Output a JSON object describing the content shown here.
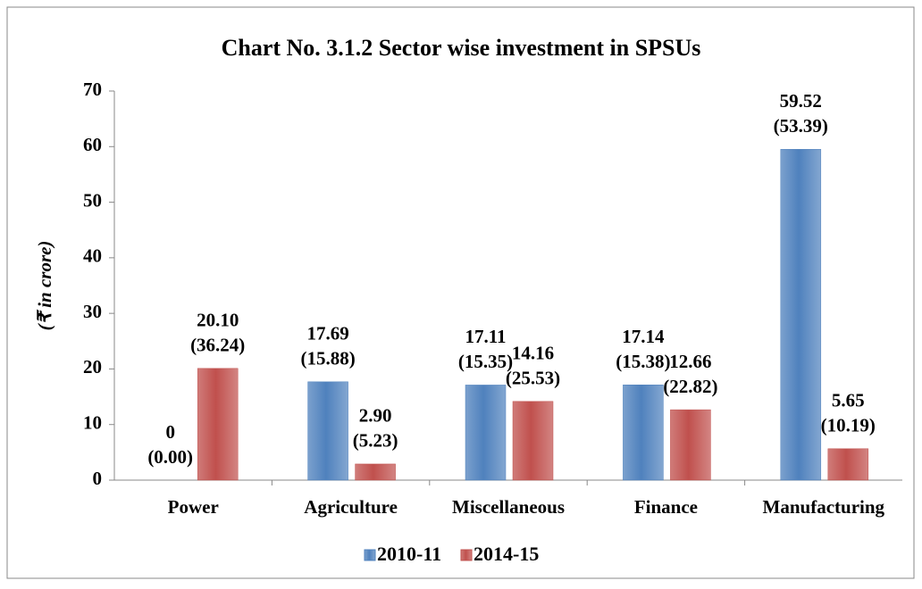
{
  "chart_data": {
    "type": "bar",
    "title": "Chart No. 3.1.2  Sector wise investment in SPSUs",
    "y_label": "(₹ in crore)",
    "categories": [
      "Power",
      "Agriculture",
      "Miscellaneous",
      "Finance",
      "Manufacturing"
    ],
    "series": [
      {
        "name": "2010-11",
        "color": "#4f81bd",
        "values": [
          0,
          17.69,
          17.11,
          17.14,
          59.52
        ],
        "value_labels": [
          "0",
          "17.69",
          "17.11",
          "17.14",
          "59.52"
        ],
        "share_labels": [
          "(0.00)",
          "(15.88)",
          "(15.35)",
          "(15.38)",
          "(53.39)"
        ]
      },
      {
        "name": "2014-15",
        "color": "#c0504d",
        "values": [
          20.1,
          2.9,
          14.16,
          12.66,
          5.65
        ],
        "value_labels": [
          "20.10",
          "2.90",
          "14.16",
          "12.66",
          "5.65"
        ],
        "share_labels": [
          "(36.24)",
          "(5.23)",
          "(25.53)",
          "(22.82)",
          "(10.19)"
        ]
      }
    ],
    "ylim": [
      0,
      70
    ],
    "yticks": [
      0,
      10,
      20,
      30,
      40,
      50,
      60,
      70
    ],
    "grid": false,
    "legend": "bottom"
  }
}
